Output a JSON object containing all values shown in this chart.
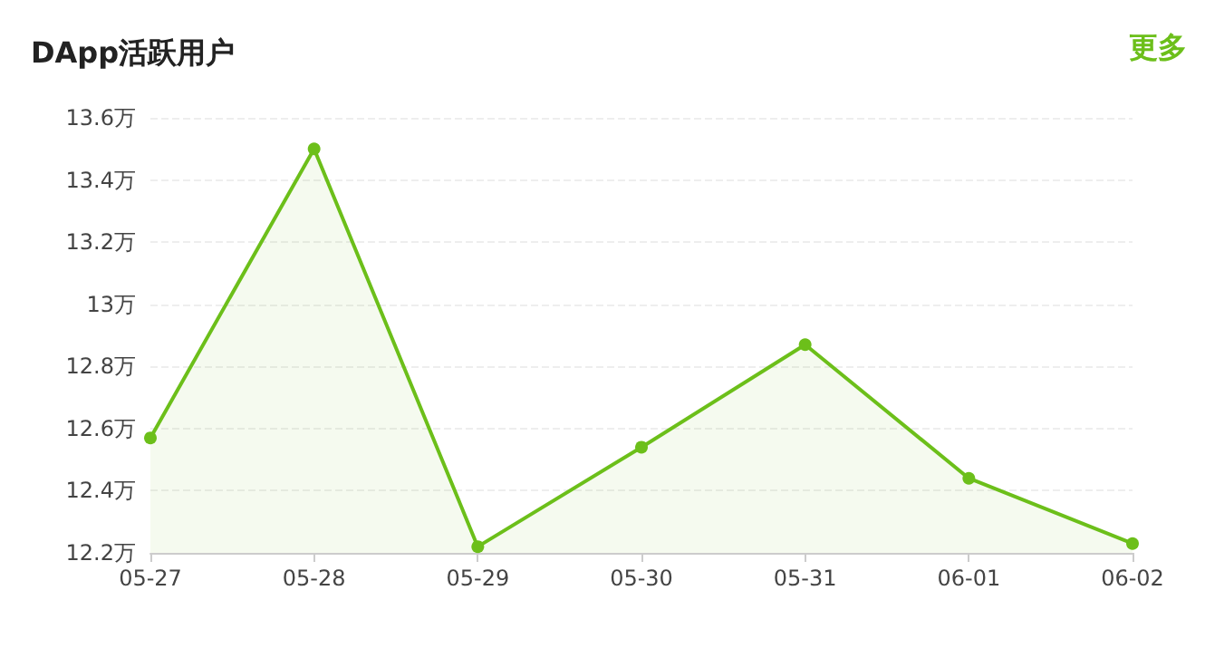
{
  "chart_data": {
    "type": "area",
    "title": "DApp活跃用户",
    "annotations": [
      "更多"
    ],
    "categories": [
      "05-27",
      "05-28",
      "05-29",
      "05-30",
      "05-31",
      "06-01",
      "06-02"
    ],
    "series": [
      {
        "color": "#6cbf1a",
        "values": [
          12.57,
          13.5,
          12.22,
          12.54,
          12.87,
          12.44,
          12.23
        ]
      }
    ],
    "ylim": [
      12.2,
      13.6
    ],
    "yticks": [
      {
        "value": 12.2,
        "label": "12.2万"
      },
      {
        "value": 12.4,
        "label": "12.4万"
      },
      {
        "value": 12.6,
        "label": "12.6万"
      },
      {
        "value": 12.8,
        "label": "12.8万"
      },
      {
        "value": 13,
        "label": "13万"
      },
      {
        "value": 13.2,
        "label": "13.2万"
      },
      {
        "value": 13.4,
        "label": "13.4万"
      },
      {
        "value": 13.6,
        "label": "13.6万"
      }
    ],
    "grid": "y",
    "marker": "circle",
    "line_style": "solid"
  }
}
